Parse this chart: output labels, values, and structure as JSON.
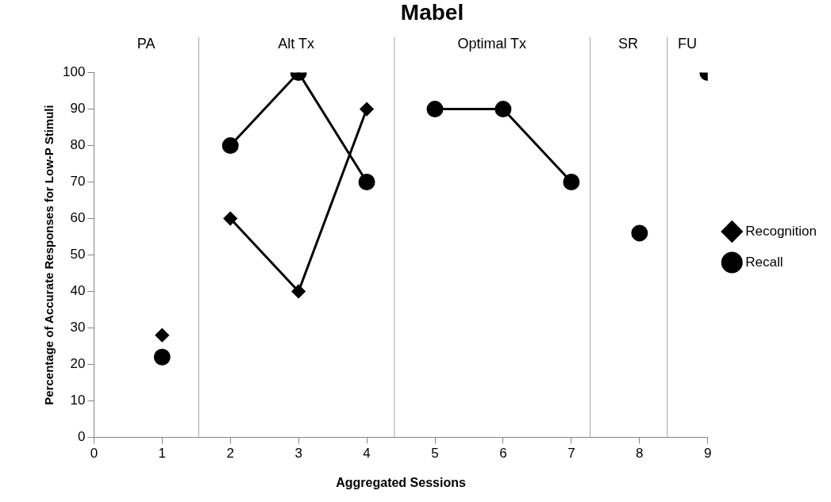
{
  "chart_data": {
    "type": "line",
    "title": "Mabel",
    "xlabel": "Aggregated Sessions",
    "ylabel": "Percentage of Accurate Responses for Low-P Stimuli",
    "xlim": [
      0,
      9
    ],
    "xticks": [
      0,
      1,
      2,
      3,
      4,
      5,
      6,
      7,
      8,
      9
    ],
    "ylim": [
      0,
      100
    ],
    "yticks": [
      0,
      10,
      20,
      30,
      40,
      50,
      60,
      70,
      80,
      90,
      100
    ],
    "grid": false,
    "legend": "right",
    "ref_lines": [
      {
        "axis": "x",
        "value": 1.53,
        "color": "#a6a6a6"
      },
      {
        "axis": "x",
        "value": 4.4,
        "color": "#a6a6a6"
      },
      {
        "axis": "x",
        "value": 7.27,
        "color": "#a6a6a6"
      },
      {
        "axis": "x",
        "value": 8.4,
        "color": "#a6a6a6"
      }
    ],
    "annotations": [
      "PA",
      "Alt Tx",
      "Optimal Tx",
      "SR",
      "FU"
    ],
    "series": [
      {
        "type": "scatter",
        "color": "#000000",
        "marker": "diamond",
        "x": [
          1
        ],
        "values": [
          28
        ]
      },
      {
        "name": "Recognition",
        "color": "#000000",
        "marker": "diamond",
        "x": [
          2,
          3,
          4
        ],
        "values": [
          60,
          40,
          90
        ]
      },
      {
        "type": "scatter",
        "color": "#000000",
        "marker": "circle",
        "x": [
          1
        ],
        "values": [
          22
        ]
      },
      {
        "name": "Recall",
        "color": "#000000",
        "marker": "circle",
        "x": [
          2,
          3,
          4
        ],
        "values": [
          80,
          100,
          70
        ]
      },
      {
        "color": "#000000",
        "marker": "circle",
        "x": [
          5,
          6,
          7
        ],
        "values": [
          90,
          90,
          70
        ]
      },
      {
        "type": "scatter",
        "color": "#000000",
        "marker": "circle",
        "x": [
          8
        ],
        "values": [
          56
        ]
      },
      {
        "type": "scatter",
        "color": "#000000",
        "marker": "circle",
        "x": [
          9
        ],
        "values": [
          100
        ]
      }
    ]
  }
}
